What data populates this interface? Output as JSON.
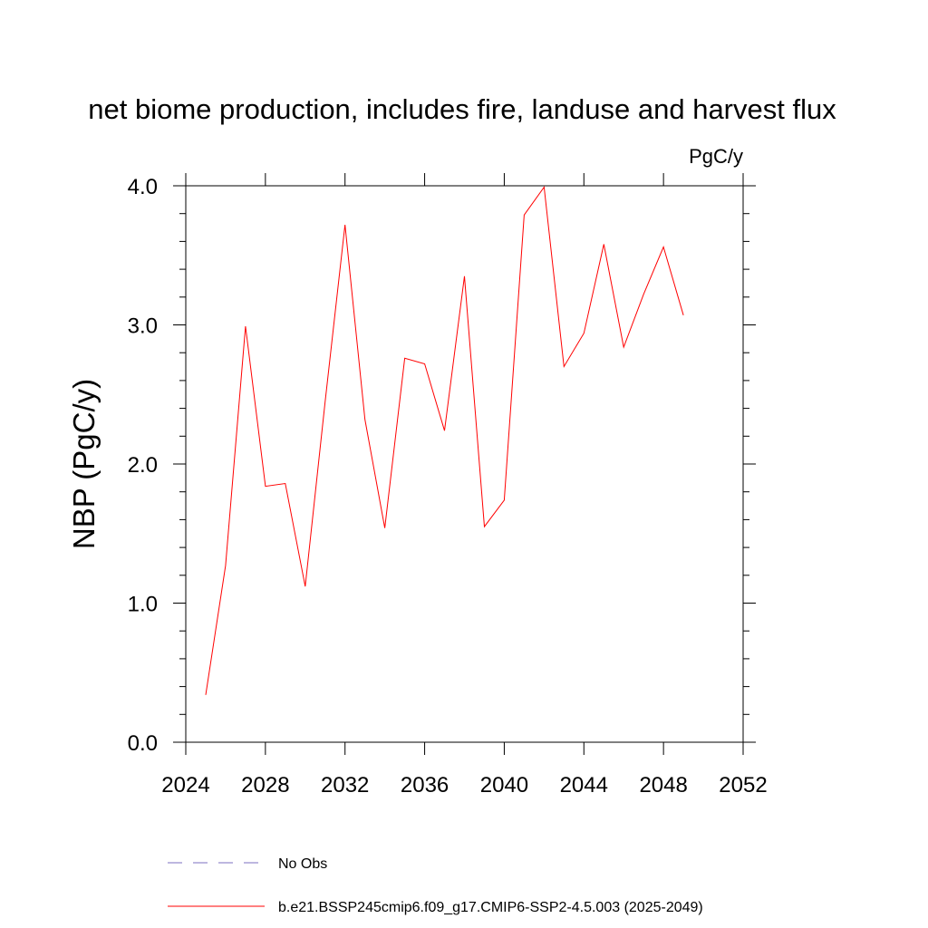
{
  "chart_data": {
    "type": "line",
    "title": "net biome production, includes fire, landuse and harvest flux",
    "units_label": "PgC/y",
    "xlabel": "",
    "ylabel": "NBP  (PgC/y)",
    "xlim": [
      2024,
      2052
    ],
    "ylim": [
      0.0,
      4.0
    ],
    "x_ticks": [
      2024,
      2028,
      2032,
      2036,
      2040,
      2044,
      2048,
      2052
    ],
    "x_tick_labels": [
      "2024",
      "2028",
      "2032",
      "2036",
      "2040",
      "2044",
      "2048",
      "2052"
    ],
    "y_ticks": [
      0.0,
      1.0,
      2.0,
      3.0,
      4.0
    ],
    "y_tick_labels": [
      "0.0",
      "1.0",
      "2.0",
      "3.0",
      "4.0"
    ],
    "grid": false,
    "legend_position": "bottom",
    "series": [
      {
        "name": "b.e21.BSSP245cmip6.f09_g17.CMIP6-SSP2-4.5.003 (2025-2049)",
        "color": "#ff0000",
        "style": "solid",
        "x": [
          2025,
          2026,
          2027,
          2028,
          2029,
          2030,
          2031,
          2032,
          2033,
          2034,
          2035,
          2036,
          2037,
          2038,
          2039,
          2040,
          2041,
          2042,
          2043,
          2044,
          2045,
          2046,
          2047,
          2048,
          2049
        ],
        "values": [
          0.34,
          1.27,
          2.99,
          1.84,
          1.86,
          1.12,
          2.45,
          3.72,
          2.32,
          1.54,
          2.76,
          2.72,
          2.24,
          3.35,
          1.55,
          1.74,
          3.79,
          3.99,
          2.7,
          2.94,
          3.58,
          2.84,
          3.22,
          3.56,
          3.07
        ]
      }
    ],
    "legend": [
      {
        "name": "No Obs",
        "color": "#7b6fc2",
        "style": "dashed"
      },
      {
        "name": "b.e21.BSSP245cmip6.f09_g17.CMIP6-SSP2-4.5.003 (2025-2049)",
        "color": "#ff0000",
        "style": "solid"
      }
    ]
  }
}
